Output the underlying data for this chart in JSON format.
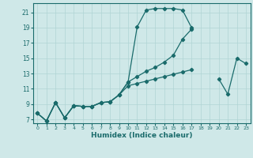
{
  "xlabel": "Humidex (Indice chaleur)",
  "background_color": "#cfe8e8",
  "grid_color": "#b0d4d4",
  "line_color": "#1a6b6b",
  "xlim": [
    -0.5,
    23.5
  ],
  "ylim": [
    6.5,
    22.2
  ],
  "yticks": [
    7,
    9,
    11,
    13,
    15,
    17,
    19,
    21
  ],
  "xticks": [
    0,
    1,
    2,
    3,
    4,
    5,
    6,
    7,
    8,
    9,
    10,
    11,
    12,
    13,
    14,
    15,
    16,
    17,
    18,
    19,
    20,
    21,
    22,
    23
  ],
  "series1_x": [
    0,
    1,
    2,
    3,
    4,
    5,
    6,
    7,
    8,
    9,
    10,
    11,
    12,
    13,
    14,
    15,
    16,
    17
  ],
  "series1_y": [
    7.8,
    6.8,
    9.2,
    7.2,
    8.8,
    8.7,
    8.7,
    9.2,
    9.3,
    10.2,
    11.9,
    19.1,
    21.3,
    21.5,
    21.5,
    21.5,
    21.3,
    19.0
  ],
  "series2_x": [
    0,
    1,
    2,
    3,
    4,
    5,
    6,
    7,
    8,
    9,
    10,
    11,
    12,
    13,
    14,
    15,
    16,
    17
  ],
  "series2_y": [
    7.8,
    6.8,
    9.2,
    7.2,
    8.8,
    8.7,
    8.7,
    9.2,
    9.3,
    10.2,
    11.9,
    12.6,
    13.3,
    13.8,
    14.5,
    15.4,
    17.5,
    18.8
  ],
  "series3_x": [
    0,
    1,
    2,
    3,
    4,
    5,
    6,
    7,
    8,
    9,
    10,
    11,
    12,
    13,
    14,
    15,
    16,
    17
  ],
  "series3_y": [
    7.8,
    6.8,
    9.2,
    7.2,
    8.8,
    8.7,
    8.7,
    9.2,
    9.3,
    10.2,
    11.4,
    11.7,
    12.0,
    12.3,
    12.6,
    12.9,
    13.2,
    13.5
  ],
  "series4_x": [
    20,
    21,
    22,
    23
  ],
  "series4_y": [
    12.3,
    10.3,
    15.0,
    14.3
  ]
}
